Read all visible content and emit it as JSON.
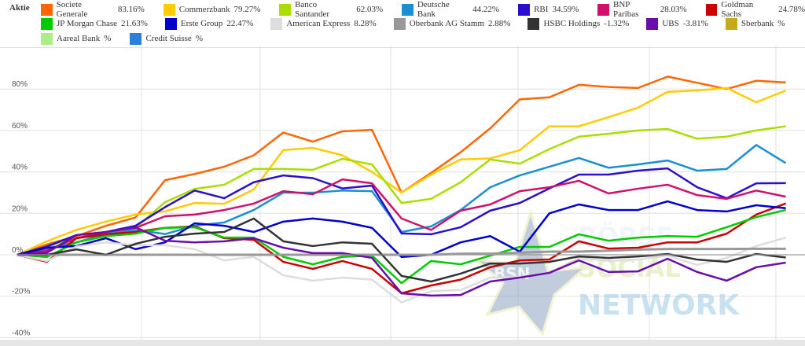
{
  "legend": {
    "title": "Aktie",
    "rows": [
      [
        0,
        1,
        2,
        3,
        4,
        5,
        6
      ],
      [
        7,
        8,
        9,
        10,
        11,
        12,
        13
      ],
      [
        14,
        15
      ]
    ]
  },
  "watermark": {
    "badge": "BSN",
    "line1": "BÖRSE",
    "line2": "SOCIAL",
    "line3": "NETWORK"
  },
  "chart_data": {
    "type": "line",
    "title": "",
    "xlabel": "",
    "ylabel": "",
    "ylim": [
      -40,
      100
    ],
    "yticks": [
      80,
      60,
      40,
      20,
      0,
      -20,
      -40
    ],
    "ytick_labels": [
      "80%",
      "60%",
      "40%",
      "20%",
      "0%",
      "-20%",
      "-40%"
    ],
    "grid": true,
    "legend_position": "top",
    "series": [
      {
        "name": "Societe Generale",
        "label": "83.16%",
        "color": "#ff6600",
        "values": [
          0,
          5,
          9,
          14,
          18,
          36,
          39,
          42.5,
          48,
          59,
          54.6,
          59.6,
          60.3,
          30,
          39.5,
          49.5,
          61,
          75,
          76,
          82,
          81,
          80.5,
          86,
          83,
          80,
          84,
          83.16
        ]
      },
      {
        "name": "Commerzbank",
        "label": "79.27%",
        "color": "#ffcc00",
        "values": [
          0,
          6.5,
          12,
          16,
          19.4,
          21,
          25,
          24.6,
          31.5,
          50.5,
          51.6,
          48,
          40,
          30,
          38.7,
          46,
          46.5,
          50.5,
          62,
          62,
          66.4,
          71,
          78.6,
          79.3,
          80.5,
          73.6,
          79.27
        ]
      },
      {
        "name": "Banco Santander",
        "label": "62.03%",
        "color": "#aadd00",
        "values": [
          0,
          4,
          8,
          11,
          13,
          25.4,
          31.8,
          33.8,
          41.4,
          41.4,
          41,
          46.3,
          43.6,
          25,
          27,
          35,
          46,
          44,
          51,
          57,
          58.4,
          60,
          60.7,
          56,
          57,
          60,
          62.03
        ]
      },
      {
        "name": "Deutsche Bank",
        "label": "44.22%",
        "color": "#1a90d0",
        "values": [
          0,
          3,
          6,
          10,
          12,
          10,
          14,
          15.6,
          21.6,
          30,
          30,
          31,
          30.7,
          11,
          13.7,
          21.6,
          32.6,
          38.3,
          42.5,
          46.7,
          42,
          43.6,
          45.5,
          40.6,
          41.4,
          53,
          44.22
        ]
      },
      {
        "name": "RBI",
        "label": "34.59%",
        "color": "#2a0fd0",
        "values": [
          0,
          4,
          9.5,
          11,
          14,
          23,
          31,
          27.3,
          35,
          38.3,
          37,
          32,
          33.4,
          10.3,
          9.9,
          13.3,
          21.3,
          25,
          32,
          38.7,
          38.7,
          40.6,
          41.7,
          32.6,
          27.3,
          34.5,
          34.59
        ]
      },
      {
        "name": "BNP Paribas",
        "label": "28.03%",
        "color": "#d0106a",
        "values": [
          0,
          2,
          8,
          11,
          13,
          18.6,
          19.4,
          21.6,
          24.7,
          30.7,
          29.2,
          36.4,
          34.5,
          17.5,
          12,
          21.3,
          24.3,
          30.7,
          32.6,
          35.7,
          29.6,
          31.9,
          33.8,
          28.8,
          27,
          31,
          28.03
        ]
      },
      {
        "name": "Goldman Sachs",
        "label": "24.78%",
        "color": "#cc0000",
        "values": [
          0,
          -3.4,
          8,
          9.9,
          11,
          13,
          13.7,
          8,
          7.2,
          -3.4,
          -6.8,
          -3,
          -6.8,
          -18.6,
          -14.8,
          -12,
          -6,
          -2.7,
          -2.3,
          6.5,
          3,
          3.4,
          6,
          6,
          10.2,
          19.4,
          24.78
        ]
      },
      {
        "name": "JP Morgan Chase",
        "label": "21.63%",
        "color": "#00cc00",
        "values": [
          0,
          -1.1,
          6,
          9,
          10.2,
          13,
          13.3,
          8.3,
          8.3,
          -1,
          -4.6,
          -1,
          -0.4,
          -13.7,
          -3,
          -4.6,
          -0.4,
          3.8,
          3.8,
          9.9,
          6.8,
          8.3,
          9,
          8.7,
          13.3,
          18.2,
          21.63
        ]
      },
      {
        "name": "Erste Group",
        "label": "22.47%",
        "color": "#0000cc",
        "values": [
          0,
          3.4,
          4.2,
          8,
          2.7,
          6,
          15.2,
          14,
          11,
          16,
          17.5,
          16,
          13,
          -1.1,
          0,
          6,
          9,
          1.5,
          20,
          24.3,
          21.6,
          21.6,
          25.8,
          21.6,
          20.9,
          23.9,
          22.47
        ]
      },
      {
        "name": "American Express",
        "label": "8.28%",
        "color": "#dddddd",
        "values": [
          0,
          -3,
          4,
          6,
          4.6,
          4.6,
          2.7,
          -2.7,
          -1,
          -9.9,
          -12.5,
          -11,
          -12,
          -23,
          -17.5,
          -17,
          -11,
          -10.6,
          -8.7,
          -1.5,
          -3,
          -2.3,
          -0.4,
          -4.9,
          -1.5,
          4.2,
          8.28
        ]
      },
      {
        "name": "Oberbank AG Stamm",
        "label": "2.88%",
        "color": "#999999",
        "values": [
          0,
          0,
          0,
          0,
          0,
          0,
          0,
          0,
          0,
          0,
          0,
          0,
          0,
          0,
          0,
          0.5,
          0.5,
          1,
          1.5,
          1.5,
          2,
          2.5,
          2.8,
          2.8,
          2.8,
          2.9,
          2.88
        ]
      },
      {
        "name": "HSBC Holdings",
        "label": "-1.32%",
        "color": "#333333",
        "values": [
          0,
          0,
          2.6,
          0,
          5.3,
          8.7,
          10.2,
          11,
          17.5,
          6.5,
          4.2,
          6,
          5.3,
          -10.2,
          -12.9,
          -9.1,
          -4.2,
          -4.2,
          -3.4,
          -0.8,
          -1.5,
          -0.8,
          0.4,
          -2.3,
          -3.4,
          0.4,
          -1.32
        ]
      },
      {
        "name": "UBS",
        "label": "-3.81%",
        "color": "#6a0dad",
        "values": [
          0,
          1,
          9.5,
          11,
          13.3,
          6.8,
          6,
          6.5,
          8,
          3.4,
          0.8,
          0.8,
          -1.5,
          -18.6,
          -19.7,
          -19.4,
          -12.9,
          -11,
          -8.7,
          -2.7,
          -8.3,
          -8,
          -1.9,
          -8.3,
          -12.5,
          -6,
          -3.81
        ]
      },
      {
        "name": "Sberbank",
        "label": "%",
        "color": "#c8aa18",
        "values": []
      },
      {
        "name": "Aareal Bank",
        "label": "%",
        "color": "#aaee88",
        "values": []
      },
      {
        "name": "Credit Suisse",
        "label": "%",
        "color": "#2a7fdd",
        "values": []
      }
    ]
  }
}
